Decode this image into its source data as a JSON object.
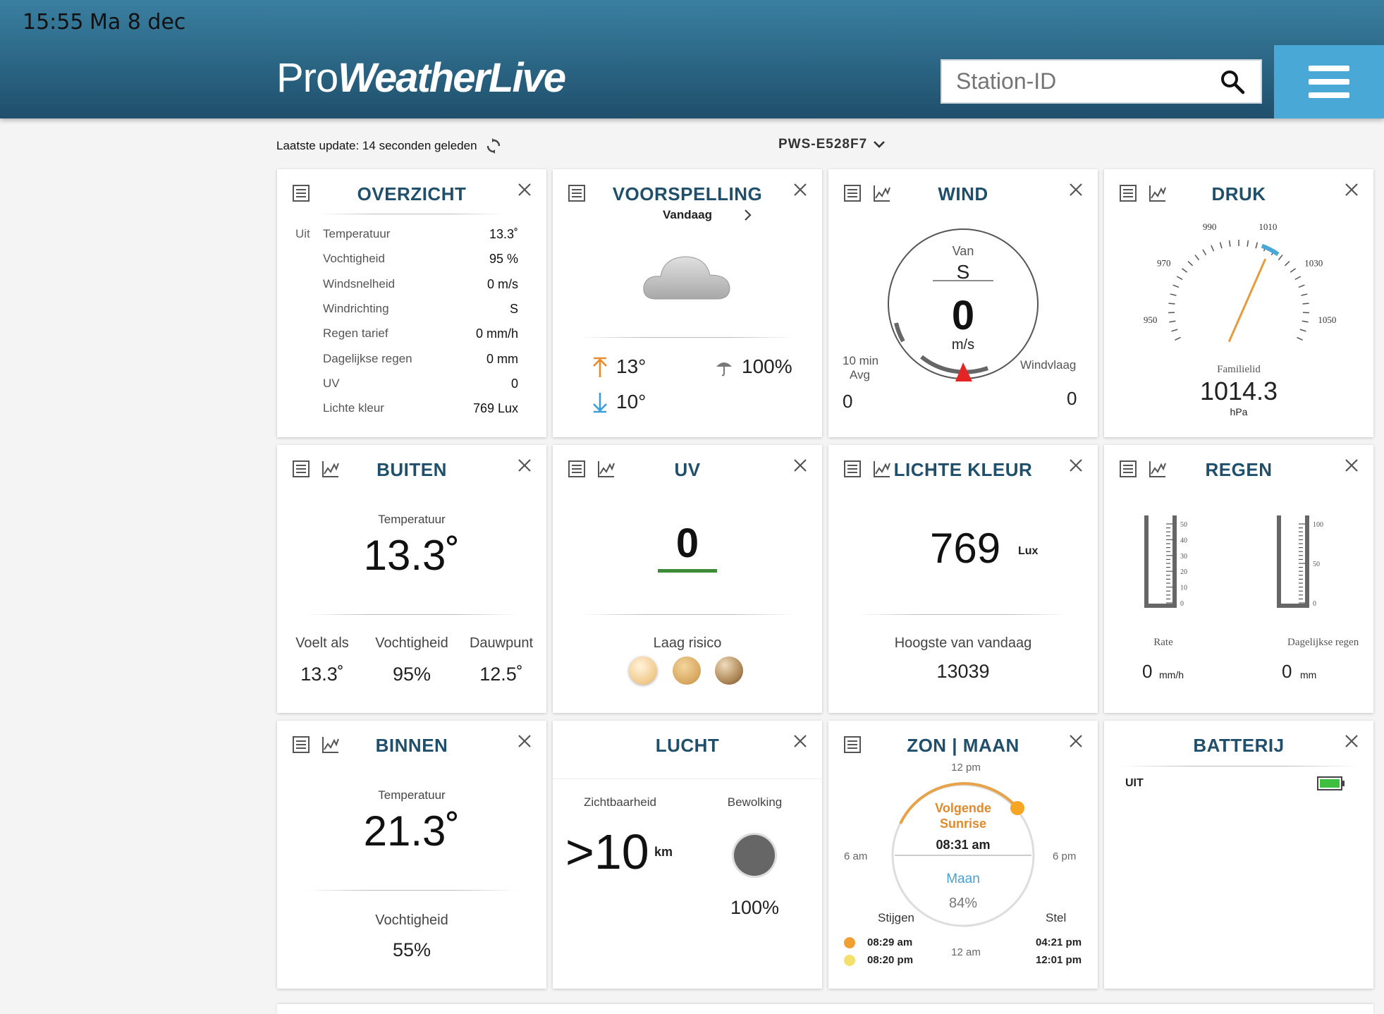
{
  "status_bar": {
    "time": "15:55",
    "date": "Ma 8 dec"
  },
  "header": {
    "logo_pro": "Pro",
    "logo_weatherlive": "WeatherLive",
    "search_placeholder": "Station-ID"
  },
  "subbar": {
    "last_update": "Laatste update: 14 seconden geleden",
    "station": "PWS-E528F7"
  },
  "overview": {
    "title": "OVERZICHT",
    "section": "Uit",
    "rows": [
      {
        "label": "Temperatuur",
        "value": "13.3˚"
      },
      {
        "label": "Vochtigheid",
        "value": "95 %"
      },
      {
        "label": "Windsnelheid",
        "value": "0 m/s"
      },
      {
        "label": "Windrichting",
        "value": "S"
      },
      {
        "label": "Regen tarief",
        "value": "0 mm/h"
      },
      {
        "label": "Dagelijkse regen",
        "value": "0 mm"
      },
      {
        "label": "UV",
        "value": "0"
      },
      {
        "label": "Lichte kleur",
        "value": "769 Lux"
      }
    ]
  },
  "forecast": {
    "title": "VOORSPELLING",
    "day": "Vandaag",
    "high": "13°",
    "low": "10°",
    "precip": "100%",
    "icon": "cloud-icon"
  },
  "wind": {
    "title": "WIND",
    "from_label": "Van",
    "direction": "S",
    "speed": "0",
    "unit": "m/s",
    "avg_label_1": "10 min",
    "avg_label_2": "Avg",
    "avg_value": "0",
    "gust_label": "Windvlaag",
    "gust_value": "0",
    "direction_degrees": 180
  },
  "pressure": {
    "title": "DRUK",
    "ticks": [
      "950",
      "970",
      "990",
      "1010",
      "1030",
      "1050"
    ],
    "label": "Familielid",
    "value": "1014.3",
    "unit": "hPa",
    "gauge_min": 940,
    "gauge_max": 1060,
    "needle_value": 1014.3
  },
  "outdoor": {
    "title": "BUITEN",
    "temp_label": "Temperatuur",
    "temp_value": "13.3˚",
    "feels_label": "Voelt als",
    "feels_value": "13.3˚",
    "humidity_label": "Vochtigheid",
    "humidity_value": "95%",
    "dew_label": "Dauwpunt",
    "dew_value": "12.5˚"
  },
  "uv": {
    "title": "UV",
    "value": "0",
    "risk": "Laag risico",
    "bar_color": "#3d8b37"
  },
  "light": {
    "title": "LICHTE KLEUR",
    "value": "769",
    "unit": "Lux",
    "high_label": "Hoogste van vandaag",
    "high_value": "13039"
  },
  "rain": {
    "title": "REGEN",
    "rate_ticks": [
      "50",
      "40",
      "30",
      "20",
      "10",
      "0"
    ],
    "daily_ticks": [
      "100",
      "50",
      "0"
    ],
    "rate_label": "Rate",
    "daily_label": "Dagelijkse regen",
    "rate_value": "0",
    "rate_unit": "mm/h",
    "daily_value": "0",
    "daily_unit": "mm"
  },
  "indoor": {
    "title": "BINNEN",
    "temp_label": "Temperatuur",
    "temp_value": "21.3˚",
    "humidity_label": "Vochtigheid",
    "humidity_value": "55%"
  },
  "sky": {
    "title": "LUCHT",
    "visibility_label": "Zichtbaarheid",
    "visibility_value": ">10",
    "visibility_unit": "km",
    "cloud_label": "Bewolking",
    "cloud_value": "100%"
  },
  "sunmoon": {
    "title": "ZON | MAAN",
    "top": "12 pm",
    "left": "6 am",
    "right": "6 pm",
    "bottom": "12 am",
    "next_1": "Volgende",
    "next_2": "Sunrise",
    "next_time": "08:31 am",
    "moon_label": "Maan",
    "moon_pct": "84%",
    "rise_label": "Stijgen",
    "set_label": "Stel",
    "sun_rise": "08:29 am",
    "moon_rise": "08:20 pm",
    "sun_set": "04:21 pm",
    "moon_set": "12:01 pm",
    "sun_color": "#f0a030",
    "moon_color": "#f3e06a"
  },
  "battery": {
    "title": "BATTERIJ",
    "label": "UIT",
    "level": 1.0,
    "color": "#3fbf3f"
  }
}
